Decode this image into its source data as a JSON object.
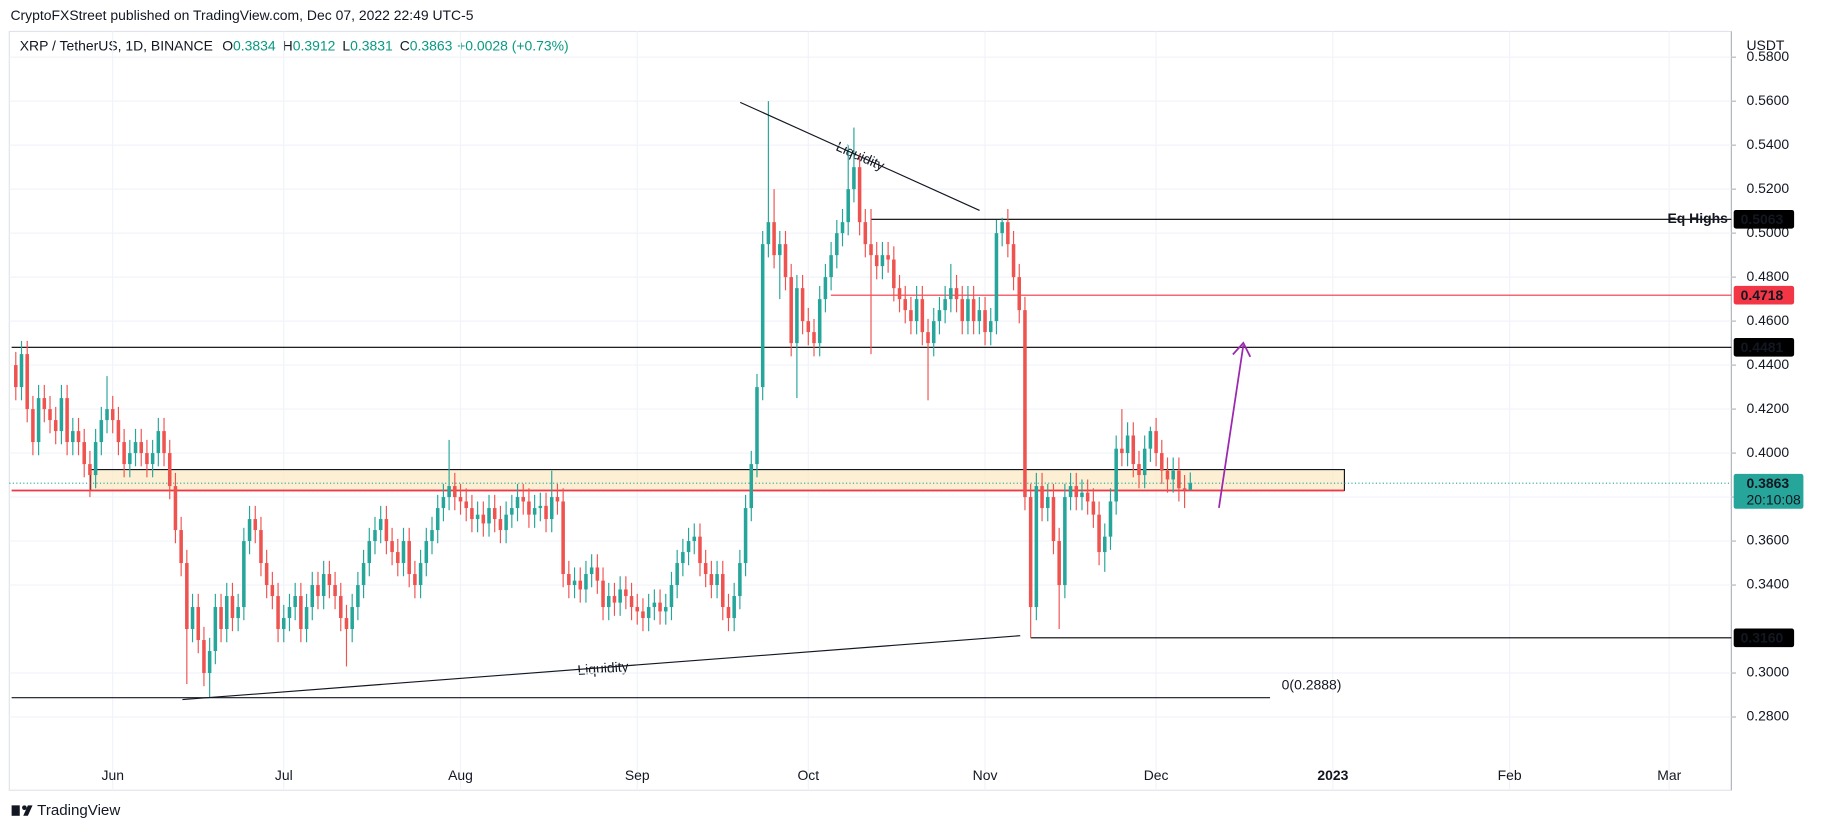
{
  "chart_data": {
    "type": "candlestick",
    "publisher": "CryptoFXStreet published on TradingView.com, Dec 07, 2022 22:49 UTC-5",
    "symbol": "XRP / TetherUS, 1D, BINANCE",
    "ohlc_legend": [
      {
        "key": "O",
        "value": "0.3834"
      },
      {
        "key": "H",
        "value": "0.3912"
      },
      {
        "key": "L",
        "value": "0.3831"
      },
      {
        "key": "C",
        "value": "0.3863"
      }
    ],
    "change": "+0.0028 (+0.73%)",
    "currency": "USDT",
    "countdown": "20:10:08",
    "footer": "TradingView",
    "up_color": "#26a69a",
    "down_color": "#ef5350",
    "xlim": [
      -1.14,
      300.9
    ],
    "xticks": [
      {
        "value": 17,
        "label": "Jun"
      },
      {
        "value": 47,
        "label": "Jul"
      },
      {
        "value": 78,
        "label": "Aug"
      },
      {
        "value": 109,
        "label": "Sep"
      },
      {
        "value": 139,
        "label": "Oct"
      },
      {
        "value": 170,
        "label": "Nov"
      },
      {
        "value": 200,
        "label": "Dec"
      },
      {
        "value": 231,
        "label": "2023"
      },
      {
        "value": 262,
        "label": "Feb"
      },
      {
        "value": 290,
        "label": "Mar"
      }
    ],
    "ylim": [
      0.2467,
      0.5917
    ],
    "yticks": [
      {
        "value": 0.28,
        "label": "0.2800"
      },
      {
        "value": 0.3,
        "label": "0.3000"
      },
      {
        "value": 0.34,
        "label": "0.3400"
      },
      {
        "value": 0.36,
        "label": "0.3600"
      },
      {
        "value": 0.38,
        "label": "0.3800"
      },
      {
        "value": 0.4,
        "label": "0.4000"
      },
      {
        "value": 0.42,
        "label": "0.4200"
      },
      {
        "value": 0.44,
        "label": "0.4400"
      },
      {
        "value": 0.46,
        "label": "0.4600"
      },
      {
        "value": 0.48,
        "label": "0.4800"
      },
      {
        "value": 0.5,
        "label": "0.5000"
      },
      {
        "value": 0.52,
        "label": "0.5200"
      },
      {
        "value": 0.54,
        "label": "0.5400"
      },
      {
        "value": 0.56,
        "label": "0.5600"
      },
      {
        "value": 0.58,
        "label": "0.5800"
      }
    ],
    "open": [
      0.44,
      0.43,
      0.445,
      0.42,
      0.405,
      0.425,
      0.42,
      0.415,
      0.41,
      0.425,
      0.405,
      0.41,
      0.405,
      0.395,
      0.39,
      0.405,
      0.415,
      0.42,
      0.415,
      0.405,
      0.395,
      0.4,
      0.405,
      0.4,
      0.395,
      0.4,
      0.41,
      0.4,
      0.385,
      0.365,
      0.35,
      0.32,
      0.33,
      0.315,
      0.3,
      0.31,
      0.33,
      0.32,
      0.335,
      0.325,
      0.33,
      0.36,
      0.37,
      0.365,
      0.35,
      0.34,
      0.335,
      0.32,
      0.325,
      0.33,
      0.335,
      0.32,
      0.33,
      0.34,
      0.335,
      0.345,
      0.34,
      0.335,
      0.325,
      0.32,
      0.33,
      0.34,
      0.35,
      0.36,
      0.365,
      0.37,
      0.36,
      0.355,
      0.35,
      0.36,
      0.345,
      0.34,
      0.35,
      0.36,
      0.365,
      0.375,
      0.38,
      0.385,
      0.38,
      0.378,
      0.375,
      0.37,
      0.372,
      0.368,
      0.375,
      0.37,
      0.365,
      0.372,
      0.375,
      0.38,
      0.378,
      0.372,
      0.375,
      0.376,
      0.37,
      0.38,
      0.378,
      0.345,
      0.34,
      0.342,
      0.338,
      0.345,
      0.348,
      0.342,
      0.33,
      0.335,
      0.332,
      0.338,
      0.335,
      0.33,
      0.328,
      0.325,
      0.33,
      0.332,
      0.328,
      0.33,
      0.34,
      0.35,
      0.355,
      0.36,
      0.362,
      0.35,
      0.345,
      0.34,
      0.345,
      0.33,
      0.325,
      0.335,
      0.35,
      0.375,
      0.395,
      0.43,
      0.495,
      0.505,
      0.49,
      0.495,
      0.48,
      0.45,
      0.475,
      0.46,
      0.455,
      0.45,
      0.47,
      0.48,
      0.49,
      0.5,
      0.505,
      0.52,
      0.53,
      0.505,
      0.495,
      0.49,
      0.485,
      0.49,
      0.488,
      0.475,
      0.47,
      0.465,
      0.46,
      0.47,
      0.455,
      0.45,
      0.46,
      0.465,
      0.47,
      0.475,
      0.47,
      0.46,
      0.47,
      0.46,
      0.465,
      0.455,
      0.46,
      0.5,
      0.505,
      0.495,
      0.48,
      0.465,
      0.38,
      0.33,
      0.385,
      0.375,
      0.38,
      0.36,
      0.34,
      0.38,
      0.385,
      0.38,
      0.382,
      0.378,
      0.372,
      0.355,
      0.362,
      0.378,
      0.402,
      0.4,
      0.408,
      0.395,
      0.39,
      0.402,
      0.41,
      0.4,
      0.392,
      0.388,
      0.392,
      0.384,
      0.3834
    ],
    "high": [
      0.446,
      0.451,
      0.451,
      0.426,
      0.431,
      0.431,
      0.426,
      0.421,
      0.431,
      0.431,
      0.416,
      0.416,
      0.411,
      0.401,
      0.411,
      0.421,
      0.435,
      0.426,
      0.421,
      0.411,
      0.406,
      0.411,
      0.411,
      0.406,
      0.406,
      0.416,
      0.416,
      0.406,
      0.391,
      0.371,
      0.356,
      0.336,
      0.336,
      0.321,
      0.316,
      0.336,
      0.336,
      0.341,
      0.341,
      0.336,
      0.366,
      0.376,
      0.376,
      0.371,
      0.356,
      0.346,
      0.341,
      0.331,
      0.336,
      0.341,
      0.341,
      0.336,
      0.346,
      0.346,
      0.351,
      0.351,
      0.346,
      0.341,
      0.331,
      0.336,
      0.346,
      0.356,
      0.366,
      0.371,
      0.376,
      0.376,
      0.366,
      0.361,
      0.366,
      0.366,
      0.351,
      0.356,
      0.366,
      0.371,
      0.381,
      0.386,
      0.406,
      0.391,
      0.386,
      0.384,
      0.381,
      0.378,
      0.378,
      0.381,
      0.381,
      0.376,
      0.378,
      0.381,
      0.386,
      0.386,
      0.384,
      0.381,
      0.382,
      0.382,
      0.392,
      0.386,
      0.384,
      0.351,
      0.348,
      0.348,
      0.351,
      0.354,
      0.354,
      0.348,
      0.341,
      0.341,
      0.344,
      0.344,
      0.341,
      0.336,
      0.334,
      0.336,
      0.338,
      0.338,
      0.336,
      0.346,
      0.356,
      0.361,
      0.366,
      0.368,
      0.368,
      0.356,
      0.351,
      0.351,
      0.351,
      0.336,
      0.341,
      0.356,
      0.381,
      0.401,
      0.436,
      0.501,
      0.56,
      0.52,
      0.501,
      0.501,
      0.486,
      0.481,
      0.481,
      0.466,
      0.461,
      0.476,
      0.486,
      0.496,
      0.506,
      0.511,
      0.54,
      0.548,
      0.536,
      0.511,
      0.511,
      0.496,
      0.496,
      0.496,
      0.494,
      0.481,
      0.476,
      0.471,
      0.476,
      0.476,
      0.461,
      0.466,
      0.471,
      0.476,
      0.486,
      0.481,
      0.476,
      0.476,
      0.476,
      0.471,
      0.471,
      0.466,
      0.506,
      0.507,
      0.511,
      0.501,
      0.486,
      0.471,
      0.386,
      0.391,
      0.391,
      0.386,
      0.386,
      0.366,
      0.386,
      0.391,
      0.391,
      0.388,
      0.388,
      0.384,
      0.378,
      0.368,
      0.384,
      0.408,
      0.42,
      0.414,
      0.414,
      0.401,
      0.408,
      0.412,
      0.416,
      0.406,
      0.398,
      0.398,
      0.398,
      0.39,
      0.3912
    ],
    "low": [
      0.424,
      0.424,
      0.414,
      0.399,
      0.399,
      0.414,
      0.409,
      0.404,
      0.404,
      0.399,
      0.399,
      0.399,
      0.389,
      0.38,
      0.384,
      0.399,
      0.409,
      0.409,
      0.399,
      0.389,
      0.389,
      0.394,
      0.394,
      0.389,
      0.389,
      0.394,
      0.394,
      0.379,
      0.359,
      0.344,
      0.295,
      0.314,
      0.309,
      0.294,
      0.2888,
      0.304,
      0.314,
      0.314,
      0.319,
      0.319,
      0.324,
      0.354,
      0.359,
      0.344,
      0.334,
      0.329,
      0.314,
      0.314,
      0.319,
      0.324,
      0.314,
      0.314,
      0.324,
      0.329,
      0.329,
      0.334,
      0.329,
      0.319,
      0.303,
      0.314,
      0.324,
      0.334,
      0.344,
      0.354,
      0.359,
      0.354,
      0.349,
      0.344,
      0.344,
      0.339,
      0.334,
      0.334,
      0.344,
      0.354,
      0.359,
      0.369,
      0.374,
      0.374,
      0.372,
      0.369,
      0.364,
      0.364,
      0.362,
      0.362,
      0.364,
      0.359,
      0.359,
      0.366,
      0.369,
      0.372,
      0.366,
      0.366,
      0.369,
      0.364,
      0.364,
      0.372,
      0.339,
      0.334,
      0.334,
      0.332,
      0.332,
      0.339,
      0.336,
      0.324,
      0.324,
      0.326,
      0.326,
      0.329,
      0.324,
      0.322,
      0.319,
      0.319,
      0.324,
      0.322,
      0.322,
      0.324,
      0.334,
      0.344,
      0.349,
      0.354,
      0.344,
      0.339,
      0.334,
      0.334,
      0.324,
      0.319,
      0.319,
      0.329,
      0.344,
      0.369,
      0.389,
      0.424,
      0.489,
      0.484,
      0.47,
      0.474,
      0.444,
      0.425,
      0.454,
      0.449,
      0.444,
      0.444,
      0.464,
      0.474,
      0.484,
      0.494,
      0.499,
      0.514,
      0.499,
      0.489,
      0.445,
      0.479,
      0.479,
      0.482,
      0.469,
      0.464,
      0.459,
      0.454,
      0.454,
      0.449,
      0.424,
      0.444,
      0.454,
      0.459,
      0.464,
      0.464,
      0.454,
      0.454,
      0.454,
      0.454,
      0.449,
      0.449,
      0.454,
      0.494,
      0.489,
      0.474,
      0.459,
      0.374,
      0.316,
      0.324,
      0.369,
      0.369,
      0.354,
      0.32,
      0.334,
      0.374,
      0.374,
      0.374,
      0.372,
      0.366,
      0.349,
      0.346,
      0.356,
      0.372,
      0.394,
      0.394,
      0.389,
      0.384,
      0.384,
      0.396,
      0.394,
      0.386,
      0.382,
      0.382,
      0.378,
      0.375,
      0.3831
    ],
    "close": [
      0.43,
      0.445,
      0.42,
      0.405,
      0.425,
      0.42,
      0.415,
      0.41,
      0.425,
      0.405,
      0.41,
      0.405,
      0.395,
      0.39,
      0.405,
      0.415,
      0.42,
      0.415,
      0.405,
      0.395,
      0.4,
      0.405,
      0.4,
      0.395,
      0.4,
      0.41,
      0.4,
      0.385,
      0.365,
      0.35,
      0.32,
      0.33,
      0.315,
      0.3,
      0.31,
      0.33,
      0.32,
      0.335,
      0.325,
      0.33,
      0.36,
      0.37,
      0.365,
      0.35,
      0.34,
      0.335,
      0.32,
      0.325,
      0.33,
      0.335,
      0.32,
      0.33,
      0.34,
      0.335,
      0.345,
      0.34,
      0.335,
      0.325,
      0.32,
      0.33,
      0.34,
      0.35,
      0.36,
      0.365,
      0.37,
      0.36,
      0.355,
      0.35,
      0.36,
      0.345,
      0.34,
      0.35,
      0.36,
      0.365,
      0.375,
      0.38,
      0.385,
      0.38,
      0.378,
      0.375,
      0.37,
      0.372,
      0.368,
      0.375,
      0.37,
      0.365,
      0.372,
      0.375,
      0.38,
      0.378,
      0.372,
      0.375,
      0.376,
      0.37,
      0.38,
      0.378,
      0.345,
      0.34,
      0.342,
      0.338,
      0.345,
      0.348,
      0.342,
      0.33,
      0.335,
      0.332,
      0.338,
      0.335,
      0.33,
      0.328,
      0.325,
      0.33,
      0.332,
      0.328,
      0.33,
      0.34,
      0.35,
      0.355,
      0.36,
      0.362,
      0.35,
      0.345,
      0.34,
      0.345,
      0.33,
      0.325,
      0.335,
      0.35,
      0.375,
      0.395,
      0.43,
      0.495,
      0.505,
      0.49,
      0.495,
      0.48,
      0.45,
      0.475,
      0.46,
      0.455,
      0.45,
      0.47,
      0.48,
      0.49,
      0.5,
      0.505,
      0.52,
      0.53,
      0.505,
      0.495,
      0.49,
      0.485,
      0.49,
      0.488,
      0.475,
      0.47,
      0.465,
      0.46,
      0.47,
      0.455,
      0.45,
      0.46,
      0.465,
      0.47,
      0.475,
      0.47,
      0.46,
      0.47,
      0.46,
      0.465,
      0.455,
      0.46,
      0.5,
      0.505,
      0.495,
      0.48,
      0.465,
      0.38,
      0.33,
      0.385,
      0.375,
      0.38,
      0.36,
      0.34,
      0.38,
      0.385,
      0.38,
      0.382,
      0.378,
      0.372,
      0.355,
      0.362,
      0.378,
      0.402,
      0.4,
      0.408,
      0.395,
      0.39,
      0.402,
      0.41,
      0.4,
      0.392,
      0.388,
      0.392,
      0.384,
      0.3834,
      0.3863
    ],
    "levels": [
      {
        "price": 0.5063,
        "color": "#000000",
        "label_color": "#000000",
        "annotation": "Eq Highs",
        "annotation_color": "#f23645"
      },
      {
        "price": 0.4718,
        "color": "#f23645",
        "label_color": "#f23645"
      },
      {
        "price": 0.4481,
        "color": "#000000",
        "label_color": "#000000"
      },
      {
        "price": {
          "value": 0.316,
          "label": "0.3160"
        },
        "color": "#000000",
        "label_color": "#000000"
      }
    ],
    "current_price": 0.3863,
    "zone": {
      "low": 0.383,
      "high": 0.3925
    },
    "fib_level": {
      "value": 0.2888,
      "label": "0(0.2888)"
    },
    "annotations": [
      "Liquidity",
      "Liquidity"
    ]
  }
}
